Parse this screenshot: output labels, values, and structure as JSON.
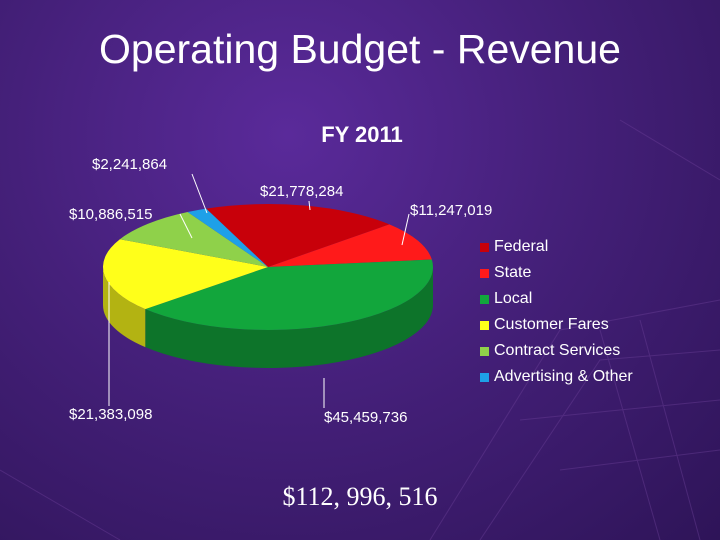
{
  "slide": {
    "title": "Operating Budget - Revenue",
    "total": "$112, 996, 516"
  },
  "colors": {
    "background": "#45207a",
    "text": "#ffffff"
  },
  "chart_data": {
    "type": "pie",
    "title": "FY 2011",
    "three_d": true,
    "legend_position": "right",
    "slices": [
      {
        "label": "Federal",
        "value": 21778284,
        "display": "$21,778,284",
        "color": "#c8000a"
      },
      {
        "label": "State",
        "value": 11247019,
        "display": "$11,247,019",
        "color": "#ff1a1a"
      },
      {
        "label": "Local",
        "value": 45459736,
        "display": "$45,459,736",
        "color": "#12a63c"
      },
      {
        "label": "Customer Fares",
        "value": 21383098,
        "display": "$21,383,098",
        "color": "#ffff1a"
      },
      {
        "label": "Contract Services",
        "value": 10886515,
        "display": "$10,886,515",
        "color": "#8fd14a"
      },
      {
        "label": "Advertising & Other",
        "value": 2241864,
        "display": "$2,241,864",
        "color": "#1ea0e8"
      }
    ]
  }
}
